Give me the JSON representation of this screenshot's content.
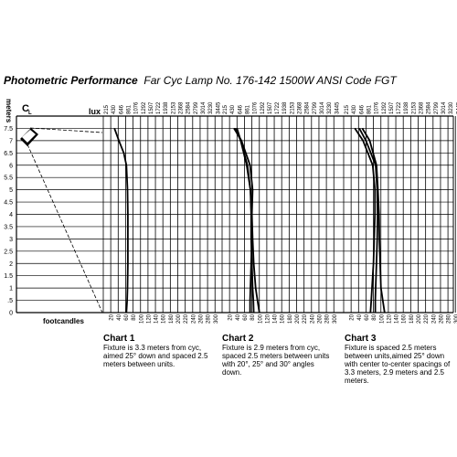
{
  "title": {
    "bold": "Photometric Performance",
    "rest": "Far Cyc  Lamp No. 176-142  1500W ANSI Code FGT"
  },
  "chart_data": {
    "type": "line",
    "ylabel": "meters",
    "ylim": [
      0,
      8
    ],
    "y_ticks": [
      "0",
      ".5",
      "1",
      "1.5",
      "2",
      "2.5",
      "3",
      "3.5",
      "4",
      "4.5",
      "5",
      "5.5",
      "6",
      "6.5",
      "7",
      "7.5"
    ],
    "fixture_label": "C",
    "fixture_sub": "L",
    "top_axis_label": "lux",
    "bottom_axis_label": "footcandles",
    "lux_ticks": [
      "215",
      "430",
      "646",
      "861",
      "1076",
      "1292",
      "1507",
      "1722",
      "1938",
      "2153",
      "2368",
      "2584",
      "2799",
      "3014",
      "3230",
      "3445"
    ],
    "fc_ticks": [
      "20",
      "40",
      "60",
      "80",
      "100",
      "120",
      "140",
      "160",
      "180",
      "200",
      "220",
      "240",
      "260",
      "280",
      "300"
    ],
    "panels": [
      {
        "title": "Chart 1",
        "caption": "Fixture is 3.3 meters from cyc, aimed 25° down and spaced 2.5 meters between units.",
        "series": [
          {
            "y": [
              0,
              0.5,
              1,
              2,
              3,
              4,
              5,
              6,
              6.5,
              7,
              7.5
            ],
            "fc": [
              62,
              64,
              65,
              66,
              66,
              66,
              65,
              62,
              55,
              42,
              30
            ]
          }
        ]
      },
      {
        "title": "Chart 2",
        "caption": "Fixture is 2.9 meters from cyc, spaced 2.5 meters between units with 20°, 25° and 30° angles down.",
        "series": [
          {
            "y": [
              0,
              0.5,
              1,
              2,
              3,
              4,
              5,
              6,
              7,
              7.5
            ],
            "fc": [
              100,
              95,
              90,
              85,
              82,
              80,
              76,
              66,
              50,
              40
            ]
          },
          {
            "y": [
              0,
              0.5,
              1,
              2,
              3,
              4,
              5,
              6,
              7,
              7.5
            ],
            "fc": [
              85,
              84,
              82,
              80,
              78,
              78,
              76,
              68,
              50,
              35
            ]
          },
          {
            "y": [
              0,
              0.5,
              1,
              2,
              3,
              4,
              5,
              6,
              7,
              7.5
            ],
            "fc": [
              75,
              75,
              76,
              78,
              80,
              80,
              82,
              75,
              52,
              32
            ]
          }
        ]
      },
      {
        "title": "Chart 3",
        "caption": "Fixture is spaced 2.5 meters between units,aimed 25° down with center to-center spacings of 3.3 meters, 2.9 meters and 2.5 meters.",
        "series": [
          {
            "y": [
              0,
              0.5,
              1,
              2,
              3,
              4,
              5,
              6,
              7,
              7.5
            ],
            "fc": [
              110,
              105,
              100,
              98,
              96,
              95,
              92,
              88,
              70,
              50
            ]
          },
          {
            "y": [
              0,
              0.5,
              1,
              2,
              3,
              4,
              5,
              6,
              7,
              7.5
            ],
            "fc": [
              85,
              85,
              86,
              88,
              90,
              91,
              90,
              86,
              60,
              42
            ]
          },
          {
            "y": [
              0,
              0.5,
              1,
              2,
              3,
              4,
              5,
              6,
              7,
              7.5
            ],
            "fc": [
              72,
              74,
              76,
              80,
              82,
              84,
              84,
              78,
              52,
              30
            ]
          }
        ]
      }
    ]
  }
}
